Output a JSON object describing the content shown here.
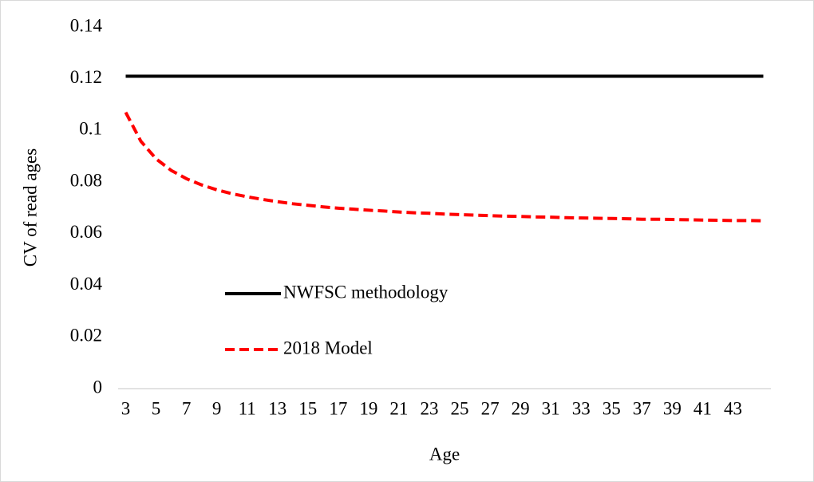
{
  "chart_data": {
    "type": "line",
    "x_label": "Age",
    "y_label": "CV of read ages",
    "categories": [
      "3",
      null,
      "5",
      null,
      "7",
      null,
      "9",
      null,
      "11",
      null,
      "13",
      null,
      "15",
      null,
      "17",
      null,
      "19",
      null,
      "21",
      null,
      "23",
      null,
      "25",
      null,
      "27",
      null,
      "29",
      null,
      "31",
      null,
      "33",
      null,
      "35",
      null,
      "37",
      null,
      "39",
      null,
      "41",
      null,
      "43",
      null,
      null
    ],
    "series": [
      {
        "name": "NWFSC methodology",
        "color": "#000000",
        "dash": "solid",
        "values": [
          0.121,
          0.121,
          0.121,
          0.121,
          0.121,
          0.121,
          0.121,
          0.121,
          0.121,
          0.121,
          0.121,
          0.121,
          0.121,
          0.121,
          0.121,
          0.121,
          0.121,
          0.121,
          0.121,
          0.121,
          0.121,
          0.121,
          0.121,
          0.121,
          0.121,
          0.121,
          0.121,
          0.121,
          0.121,
          0.121,
          0.121,
          0.121,
          0.121,
          0.121,
          0.121,
          0.121,
          0.121,
          0.121,
          0.121,
          0.121,
          0.121,
          0.121,
          0.121
        ]
      },
      {
        "name": "2018 Model",
        "color": "#ff0000",
        "dash": "dashed",
        "values": [
          0.107,
          0.0958,
          0.089,
          0.0845,
          0.0813,
          0.0789,
          0.077,
          0.0755,
          0.0743,
          0.0733,
          0.0724,
          0.0716,
          0.071,
          0.0704,
          0.0699,
          0.0695,
          0.0691,
          0.0688,
          0.0684,
          0.0681,
          0.0679,
          0.0676,
          0.0674,
          0.0672,
          0.067,
          0.0668,
          0.0667,
          0.0665,
          0.0664,
          0.0662,
          0.0661,
          0.066,
          0.0659,
          0.0658,
          0.0656,
          0.0656,
          0.0655,
          0.0654,
          0.0653,
          0.0652,
          0.0651,
          0.0651,
          0.065
        ]
      }
    ],
    "ylim": [
      0,
      0.14
    ],
    "yticks": [
      0,
      0.02,
      0.04,
      0.06,
      0.08,
      0.1,
      0.12,
      0.14
    ],
    "grid": false,
    "legend": "inside-left"
  }
}
